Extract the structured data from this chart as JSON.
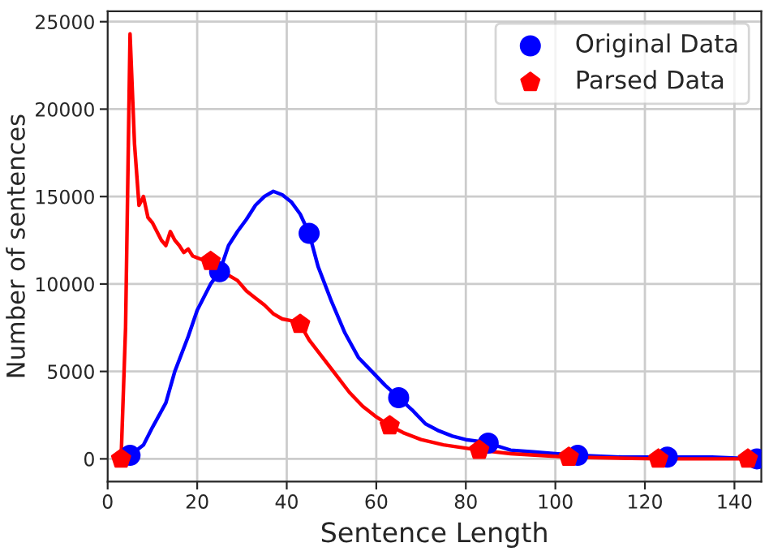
{
  "chart_data": {
    "type": "line",
    "xlabel": "Sentence Length",
    "ylabel": "Number of sentences",
    "xlim": [
      0,
      146
    ],
    "ylim": [
      -1300,
      25600
    ],
    "xticks": [
      0,
      20,
      40,
      60,
      80,
      100,
      120,
      140
    ],
    "yticks": [
      0,
      5000,
      10000,
      15000,
      20000,
      25000
    ],
    "grid": true,
    "legend": "top right",
    "series": [
      {
        "color": "#0000ff",
        "marker": "none",
        "x": [
          4,
          5,
          8,
          10,
          13,
          15,
          18,
          20,
          23,
          25,
          27,
          29,
          31,
          33,
          35,
          37,
          39,
          41,
          43,
          45,
          47,
          50,
          53,
          56,
          59,
          62,
          65,
          68,
          71,
          74,
          77,
          80,
          83,
          85,
          90,
          95,
          100,
          105,
          115,
          125,
          135,
          145
        ],
        "values": [
          100,
          200,
          800,
          1800,
          3200,
          5000,
          7000,
          8500,
          10000,
          10700,
          12200,
          13000,
          13700,
          14500,
          15000,
          15300,
          15100,
          14700,
          14000,
          12900,
          11000,
          9000,
          7200,
          5800,
          5000,
          4200,
          3500,
          2800,
          2000,
          1600,
          1300,
          1100,
          1000,
          900,
          500,
          400,
          300,
          200,
          100,
          100,
          100,
          0
        ]
      },
      {
        "color": "#ff0000",
        "marker": "none",
        "x": [
          3,
          4,
          5,
          6,
          7,
          8,
          9,
          10,
          11,
          12,
          13,
          14,
          15,
          16,
          17,
          18,
          19,
          20,
          21,
          23,
          25,
          27,
          29,
          31,
          33,
          35,
          37,
          39,
          41,
          43,
          45,
          48,
          51,
          54,
          57,
          60,
          63,
          66,
          70,
          75,
          83,
          90,
          103,
          123,
          143
        ],
        "values": [
          0,
          7500,
          24300,
          18000,
          14500,
          15000,
          13800,
          13500,
          13000,
          12500,
          12200,
          13000,
          12500,
          12200,
          11800,
          12000,
          11600,
          11500,
          11400,
          11300,
          10900,
          10500,
          10200,
          9600,
          9200,
          8800,
          8300,
          8000,
          7900,
          7700,
          6800,
          5800,
          4800,
          3800,
          3000,
          2400,
          1900,
          1500,
          1100,
          800,
          500,
          300,
          100,
          0,
          0
        ]
      },
      {
        "type": "scatter",
        "name": "Original Data",
        "color": "#0000ff",
        "marker": "circle",
        "x": [
          5,
          25,
          45,
          65,
          85,
          105,
          125,
          145
        ],
        "values": [
          200,
          10700,
          12900,
          3500,
          900,
          200,
          100,
          0
        ]
      },
      {
        "type": "scatter",
        "name": "Parsed Data",
        "color": "#ff0000",
        "marker": "star",
        "x": [
          3,
          23,
          43,
          63,
          83,
          103,
          123,
          143
        ],
        "values": [
          0,
          11300,
          7700,
          1900,
          500,
          100,
          0,
          0
        ]
      }
    ]
  }
}
